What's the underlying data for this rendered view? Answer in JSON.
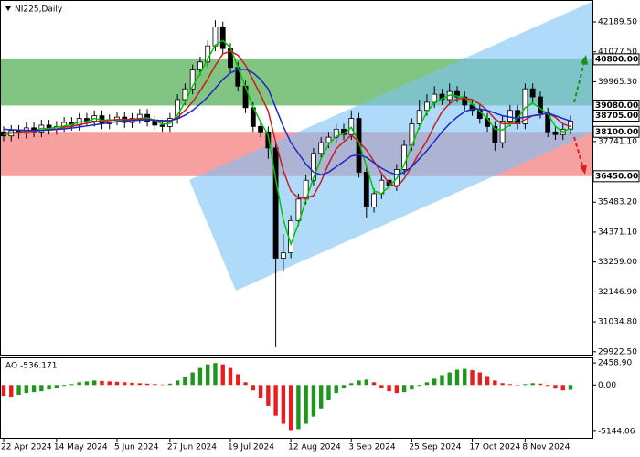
{
  "chart_data": [
    {
      "type": "candlestick",
      "title": "NI225,Daily",
      "categories": [
        "22 Apr 2024",
        null,
        null,
        null,
        null,
        null,
        null,
        "14 May 2024",
        null,
        null,
        null,
        null,
        null,
        null,
        null,
        "5 Jun 2024",
        null,
        null,
        null,
        null,
        null,
        null,
        "27 Jun 2024",
        null,
        null,
        null,
        null,
        null,
        null,
        null,
        "19 Jul 2024",
        null,
        null,
        null,
        null,
        null,
        null,
        null,
        "12 Aug 2024",
        null,
        null,
        null,
        null,
        null,
        null,
        null,
        "3 Sep 2024",
        null,
        null,
        null,
        null,
        null,
        null,
        null,
        "25 Sep 2024",
        null,
        null,
        null,
        null,
        null,
        null,
        null,
        "17 Oct 2024",
        null,
        null,
        null,
        null,
        null,
        null,
        "8 Nov 2024",
        null,
        null,
        null,
        null,
        null,
        null
      ],
      "open": [
        38100,
        37950,
        38150,
        38050,
        38250,
        38100,
        38350,
        38200,
        38300,
        38450,
        38350,
        38600,
        38500,
        38700,
        38400,
        38550,
        38650,
        38450,
        38600,
        38750,
        38500,
        38350,
        38300,
        38600,
        39300,
        39700,
        40400,
        40700,
        41300,
        42000,
        41200,
        40500,
        39800,
        39000,
        38300,
        38100,
        37500,
        33400,
        33600,
        34800,
        35600,
        36300,
        37300,
        37700,
        37900,
        38200,
        38000,
        38600,
        36600,
        35300,
        35800,
        36300,
        36100,
        36700,
        37600,
        38400,
        38900,
        39200,
        39500,
        39300,
        39600,
        39400,
        39100,
        38900,
        38600,
        38300,
        37700,
        38500,
        38900,
        38400,
        39700,
        39400,
        38800,
        38100,
        38000,
        38200
      ],
      "high": [
        38300,
        38350,
        38350,
        38450,
        38450,
        38550,
        38550,
        38500,
        38650,
        38650,
        38800,
        38800,
        38900,
        38900,
        38750,
        38850,
        38850,
        38800,
        38950,
        38950,
        38700,
        38550,
        38800,
        39500,
        39900,
        40600,
        40900,
        41500,
        42250,
        42200,
        41400,
        40700,
        40000,
        39200,
        38500,
        38300,
        37700,
        34300,
        35000,
        35800,
        36500,
        37500,
        37900,
        38100,
        38400,
        38400,
        38900,
        38800,
        36800,
        36000,
        36500,
        36500,
        36900,
        37800,
        38600,
        39300,
        39500,
        39800,
        39700,
        39900,
        39800,
        39600,
        39300,
        39100,
        38800,
        38500,
        38700,
        39100,
        39100,
        39900,
        39900,
        39600,
        39000,
        38300,
        38400,
        38700
      ],
      "low": [
        37750,
        37750,
        37850,
        37850,
        37900,
        37900,
        38000,
        38000,
        38100,
        38150,
        38150,
        38300,
        38300,
        38200,
        38200,
        38350,
        38250,
        38250,
        38400,
        38300,
        38150,
        38100,
        38100,
        38400,
        39100,
        39500,
        40200,
        40500,
        41100,
        41000,
        40300,
        39600,
        38800,
        38100,
        37900,
        37100,
        30090,
        32900,
        33400,
        34600,
        35400,
        36100,
        37100,
        37500,
        37700,
        37800,
        37800,
        36400,
        34900,
        35100,
        35600,
        35900,
        35900,
        36500,
        37400,
        38200,
        38700,
        39000,
        39100,
        39100,
        39200,
        38900,
        38700,
        38400,
        38100,
        37400,
        37500,
        38300,
        38200,
        38200,
        39200,
        38600,
        37900,
        37800,
        37800,
        38000
      ],
      "close": [
        37950,
        38150,
        38050,
        38250,
        38100,
        38350,
        38200,
        38300,
        38450,
        38350,
        38600,
        38500,
        38700,
        38400,
        38550,
        38650,
        38450,
        38600,
        38750,
        38500,
        38350,
        38300,
        38600,
        39300,
        39700,
        40400,
        40700,
        41300,
        42000,
        41200,
        40500,
        39800,
        39000,
        38300,
        38100,
        37500,
        33400,
        33600,
        34800,
        35600,
        36300,
        37300,
        37700,
        37900,
        38200,
        38000,
        38600,
        36600,
        35300,
        35800,
        36300,
        36100,
        36700,
        37600,
        38400,
        38900,
        39200,
        39500,
        39300,
        39600,
        39400,
        39100,
        38900,
        38600,
        38300,
        37700,
        38500,
        38900,
        38400,
        39700,
        39400,
        38800,
        38100,
        38000,
        38200,
        38500
      ],
      "up_color": "#ffffff",
      "down_color": "#000000",
      "wick_color": "#000000",
      "series": [
        {
          "color": "#00c800",
          "values": [
            38000,
            38050,
            38080,
            38150,
            38130,
            38230,
            38220,
            38280,
            38320,
            38370,
            38470,
            38480,
            38600,
            38530,
            38550,
            38530,
            38550,
            38570,
            38600,
            38620,
            38530,
            38380,
            38420,
            38730,
            39200,
            39800,
            40270,
            40800,
            41330,
            41500,
            41230,
            40500,
            39770,
            39030,
            38470,
            37970,
            36330,
            34830,
            33930,
            34670,
            35570,
            36400,
            37100,
            37630,
            37930,
            38030,
            38270,
            37730,
            36830,
            35900,
            35800,
            36070,
            36370,
            36870,
            37570,
            38300,
            38830,
            39200,
            39330,
            39470,
            39430,
            39370,
            39130,
            38870,
            38600,
            38200,
            38170,
            38370,
            38600,
            39000,
            39170,
            38970,
            38770,
            38300,
            38100,
            38230
          ]
        },
        {
          "color": "#c81e1e",
          "values": [
            38050,
            38070,
            38080,
            38110,
            38120,
            38160,
            38180,
            38210,
            38270,
            38300,
            38370,
            38420,
            38470,
            38500,
            38520,
            38560,
            38560,
            38560,
            38580,
            38580,
            38530,
            38490,
            38500,
            38640,
            38900,
            39210,
            39620,
            40070,
            40570,
            41000,
            41100,
            40950,
            40580,
            40030,
            39470,
            38870,
            37710,
            36660,
            35900,
            35640,
            35640,
            35730,
            36250,
            36920,
            37470,
            37730,
            37980,
            37730,
            37430,
            37000,
            36550,
            36200,
            36040,
            36360,
            36830,
            37320,
            37770,
            38340,
            38850,
            39150,
            39330,
            39350,
            39300,
            39130,
            38900,
            38580,
            38400,
            38420,
            38400,
            38560,
            38700,
            38730,
            38800,
            38640,
            38400,
            38300
          ]
        },
        {
          "color": "#1e28c8",
          "values": [
            38200,
            38180,
            38170,
            38160,
            38150,
            38160,
            38170,
            38190,
            38210,
            38240,
            38280,
            38320,
            38360,
            38400,
            38440,
            38480,
            38500,
            38520,
            38540,
            38550,
            38540,
            38520,
            38520,
            38590,
            38720,
            38900,
            39130,
            39400,
            39720,
            40050,
            40290,
            40420,
            40430,
            40300,
            40050,
            39700,
            39000,
            38300,
            37700,
            37300,
            36900,
            36600,
            36500,
            36600,
            36800,
            37000,
            37200,
            37250,
            37150,
            36950,
            36750,
            36600,
            36500,
            36600,
            36800,
            37100,
            37400,
            37750,
            38100,
            38400,
            38650,
            38850,
            38950,
            38950,
            38900,
            38800,
            38700,
            38650,
            38600,
            38650,
            38700,
            38750,
            38800,
            38700,
            38600,
            38500
          ]
        }
      ],
      "ylim": [
        29813.5,
        43005.5
      ],
      "yticks": [
        {
          "value": 42189.5,
          "label": "42189.50"
        },
        {
          "value": 41077.5,
          "label": "41077.50"
        },
        {
          "value": 39965.3,
          "label": "39965.30"
        },
        {
          "value": 37741.1,
          "label": "37741.10"
        },
        {
          "value": 35483.2,
          "label": "35483.20"
        },
        {
          "value": 34371.1,
          "label": "34371.10"
        },
        {
          "value": 33259,
          "label": "33259.00"
        },
        {
          "value": 32146.9,
          "label": "32146.90"
        },
        {
          "value": 31034.8,
          "label": "31034.80"
        },
        {
          "value": 29922.5,
          "label": "29922.50"
        }
      ],
      "levels": [
        {
          "value": 40800,
          "label": "40800.00"
        },
        {
          "value": 39080,
          "label": "39080.00"
        },
        {
          "value": 38705,
          "label": "38705.00"
        },
        {
          "value": 38100,
          "label": "38100.00"
        },
        {
          "value": 36450,
          "label": "36450.00"
        }
      ],
      "zones": [
        {
          "top": 40800,
          "bottom": 39080,
          "color": "#2e9e2e"
        },
        {
          "top": 38100,
          "bottom": 36450,
          "color": "#f26060"
        }
      ]
    },
    {
      "type": "bar",
      "name": "AO",
      "values": [
        -1200,
        -1300,
        -1100,
        -900,
        -800,
        -700,
        -500,
        -300,
        -100,
        100,
        300,
        400,
        500,
        450,
        400,
        350,
        300,
        250,
        200,
        150,
        100,
        50,
        150,
        500,
        900,
        1400,
        1900,
        2300,
        2450,
        2300,
        1900,
        1200,
        300,
        -600,
        -1400,
        -2300,
        -3400,
        -4300,
        -5100,
        -4900,
        -4300,
        -3500,
        -2600,
        -1700,
        -900,
        -300,
        200,
        500,
        600,
        300,
        -300,
        -700,
        -900,
        -800,
        -500,
        -100,
        300,
        700,
        1100,
        1400,
        1700,
        1800,
        1650,
        1400,
        1000,
        500,
        200,
        100,
        0,
        100,
        200,
        150,
        -100,
        -400,
        -600,
        -536.171
      ],
      "up_color": "#1e961e",
      "down_color": "#e61e1e",
      "ylim": [
        -5976,
        2979
      ],
      "yticks": [
        {
          "value": 2458.9,
          "label": "2458.90"
        },
        {
          "value": 0,
          "label": "0.00"
        },
        {
          "value": -5144.06,
          "label": "-5144.06"
        }
      ]
    }
  ]
}
